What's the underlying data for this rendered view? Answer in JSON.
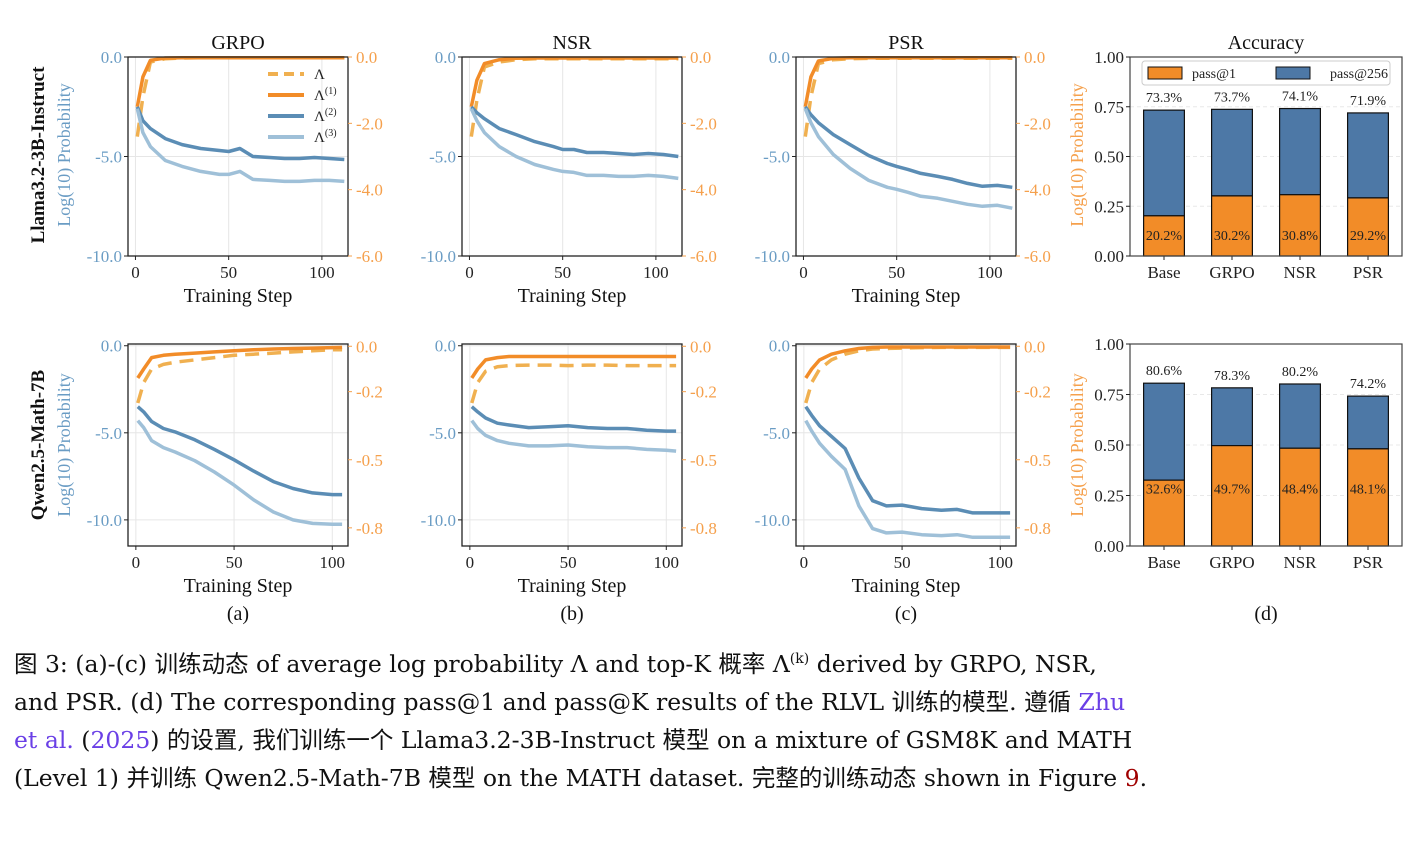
{
  "colors": {
    "lambda_dashed": "#f0b050",
    "lambda1": "#f28c28",
    "lambda2": "#5b8db5",
    "lambda3": "#9fc0d8",
    "left_axis": "#6a9cc4",
    "right_axis": "#f5a04c",
    "bar_pass1": "#f28c28",
    "bar_pass256": "#4d78a6"
  },
  "row_labels": [
    "Llama3.2-3B-Instruct",
    "Qwen2.5-Math-7B"
  ],
  "left_ylabel": "Log(10) Probability",
  "right_ylabel": "Log(10) Probability",
  "xlabel": "Training Step",
  "subfig_labels": [
    "(a)",
    "(b)",
    "(c)",
    "(d)"
  ],
  "legend": {
    "lines": [
      "Λ",
      "Λ(1)",
      "Λ(2)",
      "Λ(3)"
    ],
    "bars": [
      "pass@1",
      "pass@256"
    ]
  },
  "chart_data": [
    {
      "type": "line",
      "id": "llama-grpo",
      "title": "GRPO",
      "row": 0,
      "col": 0,
      "xlim": [
        -4,
        114
      ],
      "xticks": [
        0,
        50,
        100
      ],
      "left_ylim": [
        -10,
        0
      ],
      "left_yticks": [
        "0.0",
        "-5.0",
        "-10.0"
      ],
      "left_tick_values": [
        0,
        -5,
        -10
      ],
      "right_ylim": [
        -6,
        0
      ],
      "right_yticks": [
        "0.0",
        "-2.0",
        "-4.0",
        "-6.0"
      ],
      "right_tick_values": [
        0,
        -2,
        -4,
        -6
      ],
      "x": [
        1,
        4,
        8,
        16,
        25,
        35,
        45,
        50,
        56,
        63,
        72,
        80,
        88,
        96,
        104,
        112
      ],
      "series": [
        {
          "name": "Λ",
          "axis": "right",
          "style": "dashed",
          "values": [
            -2.4,
            -1.2,
            -0.15,
            -0.05,
            -0.03,
            -0.02,
            -0.02,
            -0.02,
            -0.02,
            -0.02,
            -0.02,
            -0.02,
            -0.02,
            -0.02,
            -0.02,
            -0.02
          ]
        },
        {
          "name": "Λ(1)",
          "axis": "right",
          "style": "solid",
          "values": [
            -1.5,
            -0.6,
            -0.1,
            -0.03,
            -0.02,
            -0.02,
            -0.02,
            -0.02,
            -0.02,
            -0.02,
            -0.02,
            -0.02,
            -0.02,
            -0.02,
            -0.02,
            -0.02
          ]
        },
        {
          "name": "Λ(2)",
          "axis": "left",
          "style": "solid",
          "values": [
            -2.5,
            -3.2,
            -3.6,
            -4.1,
            -4.4,
            -4.6,
            -4.7,
            -4.75,
            -4.6,
            -5.0,
            -5.05,
            -5.1,
            -5.1,
            -5.05,
            -5.1,
            -5.15
          ]
        },
        {
          "name": "Λ(3)",
          "axis": "left",
          "style": "solid",
          "values": [
            -2.6,
            -3.8,
            -4.5,
            -5.2,
            -5.5,
            -5.75,
            -5.9,
            -5.9,
            -5.75,
            -6.15,
            -6.2,
            -6.25,
            -6.25,
            -6.2,
            -6.2,
            -6.25
          ]
        }
      ]
    },
    {
      "type": "line",
      "id": "llama-nsr",
      "title": "NSR",
      "row": 0,
      "col": 1,
      "xlim": [
        -4,
        114
      ],
      "xticks": [
        0,
        50,
        100
      ],
      "left_ylim": [
        -10,
        0
      ],
      "left_yticks": [
        "0.0",
        "-5.0",
        "-10.0"
      ],
      "left_tick_values": [
        0,
        -5,
        -10
      ],
      "right_ylim": [
        -6,
        0
      ],
      "right_yticks": [
        "0.0",
        "-2.0",
        "-4.0",
        "-6.0"
      ],
      "right_tick_values": [
        0,
        -2,
        -4,
        -6
      ],
      "x": [
        1,
        4,
        8,
        16,
        25,
        35,
        45,
        50,
        56,
        63,
        72,
        80,
        88,
        96,
        104,
        112
      ],
      "series": [
        {
          "name": "Λ",
          "axis": "right",
          "style": "dashed",
          "values": [
            -2.4,
            -1.3,
            -0.3,
            -0.15,
            -0.08,
            -0.05,
            -0.05,
            -0.05,
            -0.05,
            -0.05,
            -0.05,
            -0.05,
            -0.05,
            -0.05,
            -0.05,
            -0.05
          ]
        },
        {
          "name": "Λ(1)",
          "axis": "right",
          "style": "solid",
          "values": [
            -1.5,
            -0.7,
            -0.2,
            -0.08,
            -0.04,
            -0.03,
            -0.03,
            -0.03,
            -0.03,
            -0.03,
            -0.03,
            -0.03,
            -0.03,
            -0.03,
            -0.03,
            -0.03
          ]
        },
        {
          "name": "Λ(2)",
          "axis": "left",
          "style": "solid",
          "values": [
            -2.5,
            -2.8,
            -3.1,
            -3.6,
            -3.9,
            -4.25,
            -4.5,
            -4.65,
            -4.65,
            -4.8,
            -4.8,
            -4.85,
            -4.9,
            -4.85,
            -4.9,
            -5.0
          ]
        },
        {
          "name": "Λ(3)",
          "axis": "left",
          "style": "solid",
          "values": [
            -2.6,
            -3.2,
            -3.8,
            -4.5,
            -5.0,
            -5.4,
            -5.65,
            -5.75,
            -5.8,
            -5.95,
            -5.95,
            -6.0,
            -6.0,
            -5.95,
            -6.0,
            -6.1
          ]
        }
      ]
    },
    {
      "type": "line",
      "id": "llama-psr",
      "title": "PSR",
      "row": 0,
      "col": 2,
      "xlim": [
        -4,
        114
      ],
      "xticks": [
        0,
        50,
        100
      ],
      "left_ylim": [
        -10,
        0
      ],
      "left_yticks": [
        "0.0",
        "-5.0",
        "-10.0"
      ],
      "left_tick_values": [
        0,
        -5,
        -10
      ],
      "right_ylim": [
        -6,
        0
      ],
      "right_yticks": [
        "0.0",
        "-2.0",
        "-4.0",
        "-6.0"
      ],
      "right_tick_values": [
        0,
        -2,
        -4,
        -6
      ],
      "x": [
        1,
        4,
        8,
        16,
        25,
        35,
        45,
        50,
        56,
        63,
        72,
        80,
        88,
        96,
        104,
        112
      ],
      "series": [
        {
          "name": "Λ",
          "axis": "right",
          "style": "dashed",
          "values": [
            -2.4,
            -1.2,
            -0.2,
            -0.08,
            -0.05,
            -0.04,
            -0.04,
            -0.04,
            -0.04,
            -0.04,
            -0.04,
            -0.04,
            -0.04,
            -0.04,
            -0.04,
            -0.04
          ]
        },
        {
          "name": "Λ(1)",
          "axis": "right",
          "style": "solid",
          "values": [
            -1.5,
            -0.6,
            -0.12,
            -0.04,
            -0.02,
            -0.02,
            -0.02,
            -0.02,
            -0.02,
            -0.02,
            -0.02,
            -0.02,
            -0.02,
            -0.02,
            -0.02,
            -0.02
          ]
        },
        {
          "name": "Λ(2)",
          "axis": "left",
          "style": "solid",
          "values": [
            -2.5,
            -2.9,
            -3.3,
            -3.9,
            -4.4,
            -4.95,
            -5.35,
            -5.5,
            -5.65,
            -5.85,
            -6.0,
            -6.15,
            -6.35,
            -6.5,
            -6.45,
            -6.55
          ]
        },
        {
          "name": "Λ(3)",
          "axis": "left",
          "style": "solid",
          "values": [
            -2.6,
            -3.3,
            -4.0,
            -4.9,
            -5.6,
            -6.2,
            -6.55,
            -6.65,
            -6.8,
            -7.0,
            -7.1,
            -7.25,
            -7.4,
            -7.5,
            -7.45,
            -7.6
          ]
        }
      ]
    },
    {
      "type": "line",
      "id": "qwen-grpo",
      "title": "",
      "row": 1,
      "col": 0,
      "xlim": [
        -4,
        108
      ],
      "xticks": [
        0,
        50,
        100
      ],
      "left_ylim": [
        -11.5,
        0.1
      ],
      "left_yticks": [
        "0.0",
        "-5.0",
        "-10.0"
      ],
      "left_tick_values": [
        0,
        -5,
        -10
      ],
      "right_ylim": [
        -0.88,
        0.01
      ],
      "right_yticks": [
        "0.0",
        "-0.2",
        "-0.5",
        "-0.8"
      ],
      "right_tick_values": [
        0,
        -0.2,
        -0.5,
        -0.8
      ],
      "x": [
        1,
        4,
        8,
        14,
        20,
        30,
        40,
        50,
        60,
        70,
        80,
        90,
        100,
        105
      ],
      "series": [
        {
          "name": "Λ",
          "axis": "right",
          "style": "dashed",
          "values": [
            -0.25,
            -0.16,
            -0.1,
            -0.08,
            -0.07,
            -0.06,
            -0.05,
            -0.04,
            -0.035,
            -0.03,
            -0.025,
            -0.02,
            -0.015,
            -0.015
          ]
        },
        {
          "name": "Λ(1)",
          "axis": "right",
          "style": "solid",
          "values": [
            -0.14,
            -0.1,
            -0.05,
            -0.04,
            -0.035,
            -0.03,
            -0.025,
            -0.02,
            -0.015,
            -0.012,
            -0.01,
            -0.008,
            -0.006,
            -0.005
          ]
        },
        {
          "name": "Λ(2)",
          "axis": "left",
          "style": "solid",
          "values": [
            -3.5,
            -3.8,
            -4.35,
            -4.75,
            -4.95,
            -5.4,
            -5.95,
            -6.55,
            -7.2,
            -7.8,
            -8.2,
            -8.45,
            -8.55,
            -8.55
          ]
        },
        {
          "name": "Λ(3)",
          "axis": "left",
          "style": "solid",
          "values": [
            -4.3,
            -4.7,
            -5.45,
            -5.85,
            -6.1,
            -6.6,
            -7.25,
            -8.0,
            -8.85,
            -9.55,
            -10.0,
            -10.2,
            -10.25,
            -10.25
          ]
        }
      ]
    },
    {
      "type": "line",
      "id": "qwen-nsr",
      "title": "",
      "row": 1,
      "col": 1,
      "xlim": [
        -4,
        108
      ],
      "xticks": [
        0,
        50,
        100
      ],
      "left_ylim": [
        -11.5,
        0.1
      ],
      "left_yticks": [
        "0.0",
        "-5.0",
        "-10.0"
      ],
      "left_tick_values": [
        0,
        -5,
        -10
      ],
      "right_ylim": [
        -0.88,
        0.01
      ],
      "right_yticks": [
        "0.0",
        "-0.2",
        "-0.5",
        "-0.8"
      ],
      "right_tick_values": [
        0,
        -0.2,
        -0.5,
        -0.8
      ],
      "x": [
        1,
        4,
        8,
        14,
        20,
        30,
        40,
        50,
        60,
        70,
        80,
        90,
        100,
        105
      ],
      "series": [
        {
          "name": "Λ",
          "axis": "right",
          "style": "dashed",
          "values": [
            -0.25,
            -0.16,
            -0.11,
            -0.09,
            -0.085,
            -0.083,
            -0.083,
            -0.085,
            -0.083,
            -0.083,
            -0.085,
            -0.085,
            -0.085,
            -0.085
          ]
        },
        {
          "name": "Λ(1)",
          "axis": "right",
          "style": "solid",
          "values": [
            -0.14,
            -0.1,
            -0.06,
            -0.05,
            -0.045,
            -0.045,
            -0.045,
            -0.045,
            -0.045,
            -0.045,
            -0.045,
            -0.045,
            -0.045,
            -0.045
          ]
        },
        {
          "name": "Λ(2)",
          "axis": "left",
          "style": "solid",
          "values": [
            -3.5,
            -3.8,
            -4.15,
            -4.45,
            -4.55,
            -4.7,
            -4.65,
            -4.6,
            -4.7,
            -4.75,
            -4.75,
            -4.85,
            -4.9,
            -4.9
          ]
        },
        {
          "name": "Λ(3)",
          "axis": "left",
          "style": "solid",
          "values": [
            -4.3,
            -4.75,
            -5.15,
            -5.45,
            -5.6,
            -5.75,
            -5.75,
            -5.7,
            -5.8,
            -5.85,
            -5.85,
            -5.95,
            -6.0,
            -6.05
          ]
        }
      ]
    },
    {
      "type": "line",
      "id": "qwen-psr",
      "title": "",
      "row": 1,
      "col": 2,
      "xlim": [
        -4,
        108
      ],
      "xticks": [
        0,
        50,
        100
      ],
      "left_ylim": [
        -11.5,
        0.1
      ],
      "left_yticks": [
        "0.0",
        "-5.0",
        "-10.0"
      ],
      "left_tick_values": [
        0,
        -5,
        -10
      ],
      "right_ylim": [
        -0.88,
        0.01
      ],
      "right_yticks": [
        "0.0",
        "-0.2",
        "-0.5",
        "-0.8"
      ],
      "right_tick_values": [
        0,
        -0.2,
        -0.5,
        -0.8
      ],
      "x": [
        1,
        4,
        8,
        14,
        21,
        28,
        35,
        42,
        50,
        60,
        70,
        78,
        86,
        95,
        105
      ],
      "series": [
        {
          "name": "Λ",
          "axis": "right",
          "style": "dashed",
          "values": [
            -0.25,
            -0.16,
            -0.1,
            -0.06,
            -0.035,
            -0.02,
            -0.012,
            -0.01,
            -0.008,
            -0.006,
            -0.005,
            -0.005,
            -0.005,
            -0.005,
            -0.005
          ]
        },
        {
          "name": "Λ(1)",
          "axis": "right",
          "style": "solid",
          "values": [
            -0.14,
            -0.1,
            -0.06,
            -0.035,
            -0.02,
            -0.01,
            -0.005,
            -0.003,
            -0.003,
            -0.003,
            -0.003,
            -0.003,
            -0.003,
            -0.003,
            -0.003
          ]
        },
        {
          "name": "Λ(2)",
          "axis": "left",
          "style": "solid",
          "values": [
            -3.5,
            -4.0,
            -4.6,
            -5.2,
            -5.9,
            -7.6,
            -8.9,
            -9.2,
            -9.15,
            -9.35,
            -9.45,
            -9.4,
            -9.6,
            -9.6,
            -9.6
          ]
        },
        {
          "name": "Λ(3)",
          "axis": "left",
          "style": "solid",
          "values": [
            -4.3,
            -4.9,
            -5.6,
            -6.35,
            -7.1,
            -9.2,
            -10.5,
            -10.75,
            -10.7,
            -10.85,
            -10.9,
            -10.85,
            -11.0,
            -11.0,
            -11.0
          ]
        }
      ]
    },
    {
      "type": "bar",
      "id": "llama-accuracy",
      "title": "Accuracy",
      "row": 0,
      "col": 3,
      "categories": [
        "Base",
        "GRPO",
        "NSR",
        "PSR"
      ],
      "ylim": [
        0,
        1
      ],
      "yticks": [
        "0.00",
        "0.25",
        "0.50",
        "0.75",
        "1.00"
      ],
      "ytick_values": [
        0,
        0.25,
        0.5,
        0.75,
        1.0
      ],
      "legend_position": "top",
      "series": [
        {
          "name": "pass@1",
          "values": [
            0.202,
            0.302,
            0.308,
            0.292
          ],
          "labels": [
            "20.2%",
            "30.2%",
            "30.8%",
            "29.2%"
          ]
        },
        {
          "name": "pass@256",
          "values": [
            0.733,
            0.737,
            0.741,
            0.719
          ],
          "labels": [
            "73.3%",
            "73.7%",
            "74.1%",
            "71.9%"
          ]
        }
      ]
    },
    {
      "type": "bar",
      "id": "qwen-accuracy",
      "title": "",
      "row": 1,
      "col": 3,
      "categories": [
        "Base",
        "GRPO",
        "NSR",
        "PSR"
      ],
      "ylim": [
        0,
        1
      ],
      "yticks": [
        "0.00",
        "0.25",
        "0.50",
        "0.75",
        "1.00"
      ],
      "ytick_values": [
        0,
        0.25,
        0.5,
        0.75,
        1.0
      ],
      "series": [
        {
          "name": "pass@1",
          "values": [
            0.326,
            0.497,
            0.484,
            0.481
          ],
          "labels": [
            "32.6%",
            "49.7%",
            "48.4%",
            "48.1%"
          ]
        },
        {
          "name": "pass@256",
          "values": [
            0.806,
            0.783,
            0.802,
            0.742
          ],
          "labels": [
            "80.6%",
            "78.3%",
            "80.2%",
            "74.2%"
          ]
        }
      ]
    }
  ],
  "caption": {
    "line1": "图 3: (a)-(c) 训练动态 of average log probability Λ and top-K 概率 Λ",
    "line1_sup": "(k)",
    "line1_end": " derived by GRPO, NSR,",
    "line2": "and PSR. (d) The corresponding pass@1 and pass@K results of the RLVL 训练的模型. 遵循 ",
    "line2_link": "Zhu",
    "line3_link1": "et al.",
    "line3_mid": " (",
    "line3_link2": "2025",
    "line3_end": ") 的设置, 我们训练一个 Llama3.2-3B-Instruct 模型 on a mixture of GSM8K and MATH",
    "line4": "(Level 1) 并训练 Qwen2.5-Math-7B 模型 on the MATH dataset. 完整的训练动态 shown in Figure ",
    "line4_link": "9",
    "line4_end": "."
  }
}
